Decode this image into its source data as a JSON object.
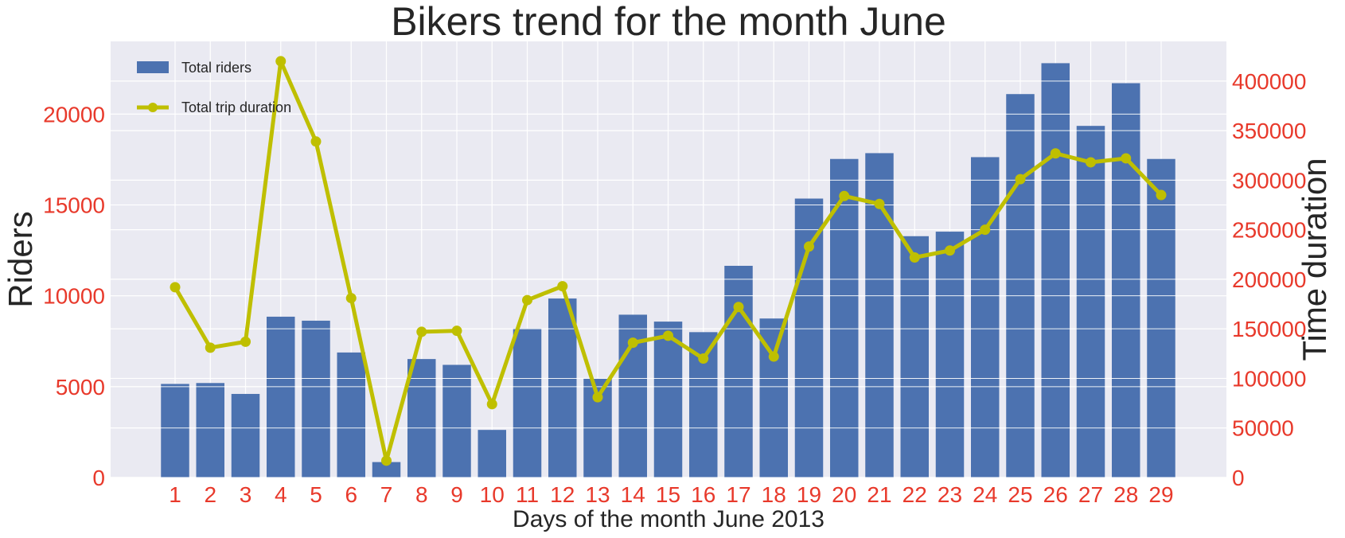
{
  "chart_data": {
    "type": "bar",
    "title": "Bikers trend for the month June",
    "xlabel": "Days of the month June 2013",
    "ylabel_left": "Riders",
    "ylabel_right": "Time duration",
    "categories": [
      "1",
      "2",
      "3",
      "4",
      "5",
      "6",
      "7",
      "8",
      "9",
      "10",
      "11",
      "12",
      "13",
      "14",
      "15",
      "16",
      "17",
      "18",
      "19",
      "20",
      "21",
      "22",
      "23",
      "24",
      "25",
      "26",
      "27",
      "28",
      "29"
    ],
    "series": [
      {
        "name": "Total riders",
        "type": "bar",
        "axis": "left",
        "color": "#4c72b0",
        "values": [
          5150,
          5200,
          4600,
          8850,
          8630,
          6880,
          850,
          6520,
          6200,
          2620,
          8200,
          9850,
          5450,
          8960,
          8580,
          8000,
          11650,
          8750,
          15350,
          17530,
          17850,
          13280,
          13530,
          17630,
          21100,
          22800,
          19350,
          21700,
          17530
        ]
      },
      {
        "name": "Total trip duration",
        "type": "line",
        "axis": "right",
        "color": "#bfbf00",
        "values": [
          192000,
          131000,
          137000,
          420000,
          339000,
          181000,
          17000,
          147000,
          148000,
          74000,
          179000,
          193000,
          81000,
          136000,
          143000,
          120000,
          172000,
          122000,
          233000,
          284000,
          276000,
          222000,
          229000,
          250000,
          301000,
          327000,
          318000,
          322000,
          285000
        ]
      }
    ],
    "ylim_left": [
      0,
      24000
    ],
    "yticks_left": [
      0,
      5000,
      10000,
      15000,
      20000
    ],
    "ylim_right": [
      0,
      440000
    ],
    "yticks_right": [
      0,
      50000,
      100000,
      150000,
      200000,
      250000,
      300000,
      350000,
      400000
    ],
    "grid": true,
    "legend_position": "top-left",
    "tick_color": "#e8392b",
    "background": "#eaeaf2"
  }
}
